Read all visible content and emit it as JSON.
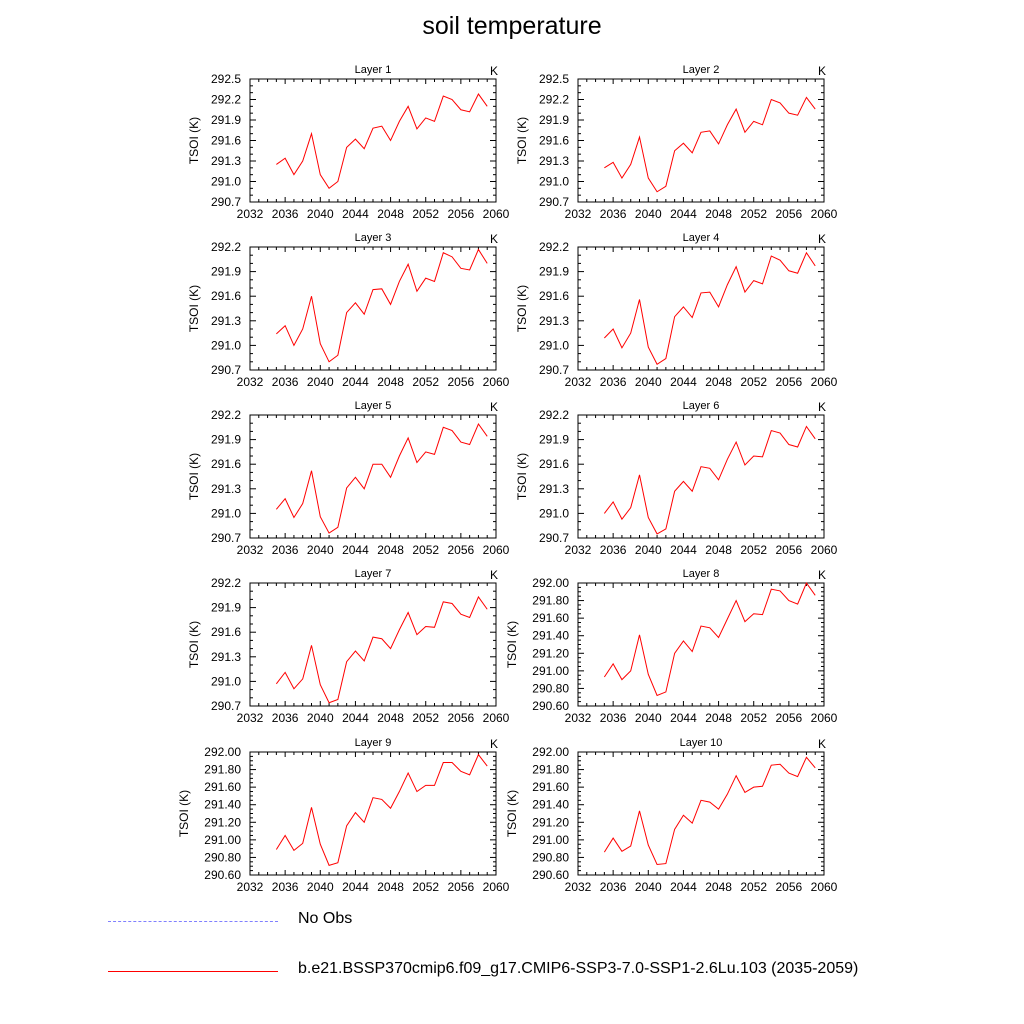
{
  "figure": {
    "title": "soil temperature"
  },
  "legend": {
    "no_obs_label": "No Obs",
    "no_obs_color": "#8080ff",
    "model_label": "b.e21.BSSP370cmip6.f09_g17.CMIP6-SSP3-7.0-SSP1-2.6Lu.103 (2035-2059)",
    "model_color": "#ff0000"
  },
  "chart_data": [
    {
      "type": "line",
      "title": "Layer 1",
      "units": "K",
      "ylabel": "TSOI  (K)",
      "xlim": [
        2032,
        2060
      ],
      "xticks": [
        "2032",
        "2036",
        "2040",
        "2044",
        "2048",
        "2052",
        "2056",
        "2060"
      ],
      "ylim": [
        290.7,
        292.5
      ],
      "yticks": [
        "290.7",
        "291.0",
        "291.3",
        "291.6",
        "291.9",
        "292.2",
        "292.5"
      ],
      "series": [
        {
          "color": "#ff0000",
          "x": [
            2035,
            2036,
            2037,
            2038,
            2039,
            2040,
            2041,
            2042,
            2043,
            2044,
            2045,
            2046,
            2047,
            2048,
            2049,
            2050,
            2051,
            2052,
            2053,
            2054,
            2055,
            2056,
            2057,
            2058,
            2059
          ],
          "values": [
            291.25,
            291.34,
            291.1,
            291.3,
            291.7,
            291.1,
            290.9,
            291.0,
            291.5,
            291.62,
            291.48,
            291.78,
            291.81,
            291.6,
            291.88,
            292.1,
            291.77,
            291.93,
            291.88,
            292.25,
            292.2,
            292.05,
            292.02,
            292.28,
            292.1
          ]
        }
      ]
    },
    {
      "type": "line",
      "title": "Layer 2",
      "units": "K",
      "ylabel": "TSOI  (K)",
      "xlim": [
        2032,
        2060
      ],
      "xticks": [
        "2032",
        "2036",
        "2040",
        "2044",
        "2048",
        "2052",
        "2056",
        "2060"
      ],
      "ylim": [
        290.7,
        292.5
      ],
      "yticks": [
        "290.7",
        "291.0",
        "291.3",
        "291.6",
        "291.9",
        "292.2",
        "292.5"
      ],
      "series": [
        {
          "color": "#ff0000",
          "x": [
            2035,
            2036,
            2037,
            2038,
            2039,
            2040,
            2041,
            2042,
            2043,
            2044,
            2045,
            2046,
            2047,
            2048,
            2049,
            2050,
            2051,
            2052,
            2053,
            2054,
            2055,
            2056,
            2057,
            2058,
            2059
          ],
          "values": [
            291.2,
            291.28,
            291.05,
            291.25,
            291.65,
            291.05,
            290.85,
            290.93,
            291.45,
            291.56,
            291.42,
            291.72,
            291.74,
            291.55,
            291.83,
            292.06,
            291.72,
            291.88,
            291.83,
            292.2,
            292.15,
            292.0,
            291.97,
            292.23,
            292.06
          ]
        }
      ]
    },
    {
      "type": "line",
      "title": "Layer 3",
      "units": "K",
      "ylabel": "TSOI  (K)",
      "xlim": [
        2032,
        2060
      ],
      "xticks": [
        "2032",
        "2036",
        "2040",
        "2044",
        "2048",
        "2052",
        "2056",
        "2060"
      ],
      "ylim": [
        290.7,
        292.2
      ],
      "yticks": [
        "290.7",
        "291.0",
        "291.3",
        "291.6",
        "291.9",
        "292.2"
      ],
      "series": [
        {
          "color": "#ff0000",
          "x": [
            2035,
            2036,
            2037,
            2038,
            2039,
            2040,
            2041,
            2042,
            2043,
            2044,
            2045,
            2046,
            2047,
            2048,
            2049,
            2050,
            2051,
            2052,
            2053,
            2054,
            2055,
            2056,
            2057,
            2058,
            2059
          ],
          "values": [
            291.14,
            291.24,
            291.0,
            291.2,
            291.6,
            291.02,
            290.8,
            290.88,
            291.4,
            291.52,
            291.38,
            291.68,
            291.69,
            291.5,
            291.78,
            291.99,
            291.66,
            291.82,
            291.78,
            292.13,
            292.08,
            291.94,
            291.92,
            292.17,
            292.0
          ]
        }
      ]
    },
    {
      "type": "line",
      "title": "Layer 4",
      "units": "K",
      "ylabel": "TSOI  (K)",
      "xlim": [
        2032,
        2060
      ],
      "xticks": [
        "2032",
        "2036",
        "2040",
        "2044",
        "2048",
        "2052",
        "2056",
        "2060"
      ],
      "ylim": [
        290.7,
        292.2
      ],
      "yticks": [
        "290.7",
        "291.0",
        "291.3",
        "291.6",
        "291.9",
        "292.2"
      ],
      "series": [
        {
          "color": "#ff0000",
          "x": [
            2035,
            2036,
            2037,
            2038,
            2039,
            2040,
            2041,
            2042,
            2043,
            2044,
            2045,
            2046,
            2047,
            2048,
            2049,
            2050,
            2051,
            2052,
            2053,
            2054,
            2055,
            2056,
            2057,
            2058,
            2059
          ],
          "values": [
            291.09,
            291.2,
            290.97,
            291.15,
            291.56,
            290.98,
            290.77,
            290.84,
            291.35,
            291.47,
            291.34,
            291.64,
            291.65,
            291.47,
            291.74,
            291.96,
            291.65,
            291.79,
            291.75,
            292.09,
            292.04,
            291.91,
            291.88,
            292.13,
            291.97
          ]
        }
      ]
    },
    {
      "type": "line",
      "title": "Layer 5",
      "units": "K",
      "ylabel": "TSOI  (K)",
      "xlim": [
        2032,
        2060
      ],
      "xticks": [
        "2032",
        "2036",
        "2040",
        "2044",
        "2048",
        "2052",
        "2056",
        "2060"
      ],
      "ylim": [
        290.7,
        292.2
      ],
      "yticks": [
        "290.7",
        "291.0",
        "291.3",
        "291.6",
        "291.9",
        "292.2"
      ],
      "series": [
        {
          "color": "#ff0000",
          "x": [
            2035,
            2036,
            2037,
            2038,
            2039,
            2040,
            2041,
            2042,
            2043,
            2044,
            2045,
            2046,
            2047,
            2048,
            2049,
            2050,
            2051,
            2052,
            2053,
            2054,
            2055,
            2056,
            2057,
            2058,
            2059
          ],
          "values": [
            291.05,
            291.18,
            290.95,
            291.12,
            291.52,
            290.96,
            290.76,
            290.83,
            291.31,
            291.44,
            291.3,
            291.6,
            291.6,
            291.44,
            291.7,
            291.92,
            291.62,
            291.75,
            291.72,
            292.05,
            292.01,
            291.87,
            291.84,
            292.09,
            291.94
          ]
        }
      ]
    },
    {
      "type": "line",
      "title": "Layer 6",
      "units": "K",
      "ylabel": "TSOI  (K)",
      "xlim": [
        2032,
        2060
      ],
      "xticks": [
        "2032",
        "2036",
        "2040",
        "2044",
        "2048",
        "2052",
        "2056",
        "2060"
      ],
      "ylim": [
        290.7,
        292.2
      ],
      "yticks": [
        "290.7",
        "291.0",
        "291.3",
        "291.6",
        "291.9",
        "292.2"
      ],
      "series": [
        {
          "color": "#ff0000",
          "x": [
            2035,
            2036,
            2037,
            2038,
            2039,
            2040,
            2041,
            2042,
            2043,
            2044,
            2045,
            2046,
            2047,
            2048,
            2049,
            2050,
            2051,
            2052,
            2053,
            2054,
            2055,
            2056,
            2057,
            2058,
            2059
          ],
          "values": [
            291.0,
            291.14,
            290.93,
            291.07,
            291.47,
            290.95,
            290.75,
            290.81,
            291.27,
            291.39,
            291.27,
            291.57,
            291.55,
            291.41,
            291.66,
            291.87,
            291.59,
            291.7,
            291.69,
            292.01,
            291.98,
            291.84,
            291.81,
            292.06,
            291.91
          ]
        }
      ]
    },
    {
      "type": "line",
      "title": "Layer 7",
      "units": "K",
      "ylabel": "TSOI  (K)",
      "xlim": [
        2032,
        2060
      ],
      "xticks": [
        "2032",
        "2036",
        "2040",
        "2044",
        "2048",
        "2052",
        "2056",
        "2060"
      ],
      "ylim": [
        290.7,
        292.2
      ],
      "yticks": [
        "290.7",
        "291.0",
        "291.3",
        "291.6",
        "291.9",
        "292.2"
      ],
      "series": [
        {
          "color": "#ff0000",
          "x": [
            2035,
            2036,
            2037,
            2038,
            2039,
            2040,
            2041,
            2042,
            2043,
            2044,
            2045,
            2046,
            2047,
            2048,
            2049,
            2050,
            2051,
            2052,
            2053,
            2054,
            2055,
            2056,
            2057,
            2058,
            2059
          ],
          "values": [
            290.97,
            291.11,
            290.91,
            291.03,
            291.44,
            290.96,
            290.74,
            290.78,
            291.24,
            291.37,
            291.25,
            291.54,
            291.52,
            291.4,
            291.63,
            291.84,
            291.57,
            291.67,
            291.66,
            291.97,
            291.95,
            291.82,
            291.78,
            292.03,
            291.88
          ]
        }
      ]
    },
    {
      "type": "line",
      "title": "Layer 8",
      "units": "K",
      "ylabel": "TSOI  (K)",
      "xlim": [
        2032,
        2060
      ],
      "xticks": [
        "2032",
        "2036",
        "2040",
        "2044",
        "2048",
        "2052",
        "2056",
        "2060"
      ],
      "ylim": [
        290.6,
        292.0
      ],
      "yticks": [
        "290.60",
        "290.80",
        "291.00",
        "291.20",
        "291.40",
        "291.60",
        "291.80",
        "292.00"
      ],
      "series": [
        {
          "color": "#ff0000",
          "x": [
            2035,
            2036,
            2037,
            2038,
            2039,
            2040,
            2041,
            2042,
            2043,
            2044,
            2045,
            2046,
            2047,
            2048,
            2049,
            2050,
            2051,
            2052,
            2053,
            2054,
            2055,
            2056,
            2057,
            2058,
            2059
          ],
          "values": [
            290.93,
            291.08,
            290.9,
            291.0,
            291.41,
            290.96,
            290.72,
            290.76,
            291.2,
            291.34,
            291.22,
            291.51,
            291.49,
            291.38,
            291.59,
            291.8,
            291.56,
            291.65,
            291.64,
            291.93,
            291.91,
            291.8,
            291.76,
            292.0,
            291.86
          ]
        }
      ]
    },
    {
      "type": "line",
      "title": "Layer 9",
      "units": "K",
      "ylabel": "TSOI  (K)",
      "xlim": [
        2032,
        2060
      ],
      "xticks": [
        "2032",
        "2036",
        "2040",
        "2044",
        "2048",
        "2052",
        "2056",
        "2060"
      ],
      "ylim": [
        290.6,
        292.0
      ],
      "yticks": [
        "290.60",
        "290.80",
        "291.00",
        "291.20",
        "291.40",
        "291.60",
        "291.80",
        "292.00"
      ],
      "series": [
        {
          "color": "#ff0000",
          "x": [
            2035,
            2036,
            2037,
            2038,
            2039,
            2040,
            2041,
            2042,
            2043,
            2044,
            2045,
            2046,
            2047,
            2048,
            2049,
            2050,
            2051,
            2052,
            2053,
            2054,
            2055,
            2056,
            2057,
            2058,
            2059
          ],
          "values": [
            290.89,
            291.05,
            290.88,
            290.96,
            291.37,
            290.95,
            290.71,
            290.74,
            291.16,
            291.31,
            291.2,
            291.48,
            291.46,
            291.36,
            291.55,
            291.76,
            291.55,
            291.62,
            291.62,
            291.88,
            291.88,
            291.78,
            291.74,
            291.97,
            291.84
          ]
        }
      ]
    },
    {
      "type": "line",
      "title": "Layer 10",
      "units": "K",
      "ylabel": "TSOI  (K)",
      "xlim": [
        2032,
        2060
      ],
      "xticks": [
        "2032",
        "2036",
        "2040",
        "2044",
        "2048",
        "2052",
        "2056",
        "2060"
      ],
      "ylim": [
        290.6,
        292.0
      ],
      "yticks": [
        "290.60",
        "290.80",
        "291.00",
        "291.20",
        "291.40",
        "291.60",
        "291.80",
        "292.00"
      ],
      "series": [
        {
          "color": "#ff0000",
          "x": [
            2035,
            2036,
            2037,
            2038,
            2039,
            2040,
            2041,
            2042,
            2043,
            2044,
            2045,
            2046,
            2047,
            2048,
            2049,
            2050,
            2051,
            2052,
            2053,
            2054,
            2055,
            2056,
            2057,
            2058,
            2059
          ],
          "values": [
            290.86,
            291.02,
            290.87,
            290.93,
            291.33,
            290.94,
            290.72,
            290.73,
            291.12,
            291.28,
            291.19,
            291.45,
            291.43,
            291.35,
            291.52,
            291.73,
            291.54,
            291.6,
            291.61,
            291.85,
            291.86,
            291.76,
            291.72,
            291.94,
            291.82
          ]
        }
      ]
    }
  ]
}
